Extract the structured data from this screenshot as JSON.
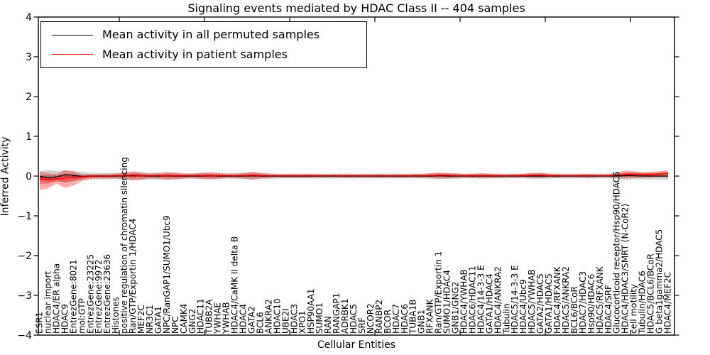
{
  "title": "Signaling events mediated by HDAC Class II -- 404 samples",
  "legend": {
    "items": [
      {
        "label": "Mean activity in all permuted samples",
        "color": "#000000"
      },
      {
        "label": "Mean activity in patient samples",
        "color": "#ff0000"
      }
    ]
  },
  "chart_data": {
    "type": "line",
    "title": "Signaling events mediated by HDAC Class II -- 404 samples",
    "xlabel": "Cellular Entities",
    "ylabel": "Inferred Activity",
    "ylim": [
      -4,
      4
    ],
    "yticks": [
      4,
      3,
      2,
      1,
      0,
      -1,
      -2,
      -3,
      -4
    ],
    "grid": false,
    "legend_position": "upper left",
    "zero_line_style": "dotted",
    "x_tick_labels_rotation": 90,
    "categories": [
      "ESR1",
      "nuclear import",
      "HDAC4/ER alpha",
      "HDAC9",
      "EntrezGene:8021",
      "mol:GTP",
      "EntrezGene:23225",
      "EntrezGene:9972",
      "EntrezGene:23636",
      "Histones",
      "positive regulation of chromatin silencing",
      "Ran/GTP/Exportin 1/HDAC4",
      "MEF2C",
      "NR3C1",
      "GATA1",
      "NPC/RanGAP1/SUMO1/Ubc9",
      "NPC",
      "CAMK4",
      "GNG2",
      "HDAC11",
      "TUBB2A",
      "YWHAE",
      "YWHAB",
      "HDAC4/CaMK II delta B",
      "HDAC4",
      "GATA2",
      "BCL6",
      "ANKRA2",
      "HDAC10",
      "UBE2I",
      "HDAC3",
      "XPO1",
      "HSP90AA1",
      "SUMO1",
      "RAN",
      "RANGAP1",
      "ADRBK1",
      "HDAC5",
      "SRF",
      "NCOR2",
      "RANBP2",
      "BCOR",
      "HDAC7",
      "HDAC6",
      "TUBA1B",
      "GNB1",
      "RFXANK",
      "Ran/GTP/Exportin 1",
      "SUMO1/HDAC4",
      "GNB1/GNG2",
      "HDAC4/YWHAB",
      "HDAC6/HDAC11",
      "HDAC4/14-3-3 E",
      "GATA1/HDAC4",
      "HDAC4/ANKRA2",
      "Tubulin",
      "HDAC5/14-3-3 E",
      "HDAC4/Ubc9",
      "HDAC5/YWHAB",
      "GATA2/HDAC5",
      "GATA1/HDAC5",
      "HDAC4/RFXANK",
      "HDAC5/ANKRA2",
      "BCL6/BCoR",
      "HDAC7/HDAC3",
      "Hsp90/HDAC6",
      "HDAC5/RFXANK",
      "HDAC4/SRF",
      "Glucocorticoid receptor/Hsp90/HDAC6",
      "HDAC4/HDAC3/SMRT (N-CoR2)",
      "cell motility",
      "Tubulin/HDAC6",
      "HDAC5/BCL6/BCoR",
      "G beta1gamma2/HDAC5",
      "HDAC4/MEF2C"
    ],
    "series": [
      {
        "name": "Mean activity in all permuted samples",
        "color": "#000000",
        "values": [
          -0.01,
          -0.05,
          -0.02,
          0.04,
          0.02,
          -0.01,
          0,
          0,
          0,
          0,
          0.01,
          0.02,
          0.01,
          0,
          0,
          0.01,
          0,
          0,
          0,
          0,
          0.01,
          0,
          0,
          0,
          0,
          0.01,
          0,
          0,
          0,
          0,
          0,
          0,
          0,
          0,
          0,
          0,
          0,
          0,
          0,
          0,
          0,
          0,
          0,
          0,
          0,
          0,
          0,
          0.01,
          0,
          0,
          0,
          0,
          0,
          0,
          0,
          0,
          0,
          0,
          0,
          0,
          0,
          0,
          0,
          0,
          0,
          0,
          0,
          0,
          0,
          0.01,
          0.01,
          0,
          0,
          0,
          0
        ]
      },
      {
        "name": "Mean activity in patient samples",
        "color": "#ff0000",
        "values": [
          -0.07,
          -0.09,
          -0.07,
          -0.05,
          -0.03,
          -0.02,
          0,
          0,
          0,
          0.01,
          0.01,
          0.01,
          0.01,
          0.01,
          0.01,
          0.01,
          0.01,
          0.01,
          0.01,
          0.01,
          0.01,
          0.01,
          0.01,
          0.01,
          0.01,
          0.02,
          0.01,
          0.01,
          0.01,
          0.01,
          0.01,
          0.01,
          0.01,
          0.01,
          0.01,
          0.01,
          0.01,
          0.01,
          0.01,
          0.01,
          0.01,
          0.01,
          0.01,
          0.01,
          0.01,
          0.01,
          0.01,
          0.02,
          0.02,
          0.01,
          0.01,
          0.01,
          0.01,
          0.01,
          0.01,
          0.01,
          0.01,
          0.01,
          0.02,
          0.02,
          0.01,
          0.01,
          0.01,
          0.01,
          0.01,
          0.01,
          0.01,
          0.01,
          0.02,
          0.04,
          0.05,
          0.04,
          0.04,
          0.05,
          0.07
        ]
      }
    ],
    "bands": [
      {
        "name": "permuted-ci",
        "color": "#808080",
        "opacity": 0.38,
        "center": 0,
        "half_width": [
          0.12,
          0.15,
          0.13,
          0.15,
          0.12,
          0.1,
          0.08,
          0.08,
          0.08,
          0.08,
          0.09,
          0.1,
          0.09,
          0.08,
          0.08,
          0.09,
          0.08,
          0.07,
          0.07,
          0.08,
          0.08,
          0.08,
          0.07,
          0.07,
          0.08,
          0.09,
          0.08,
          0.07,
          0.06,
          0.06,
          0.06,
          0.06,
          0.06,
          0.06,
          0.06,
          0.06,
          0.06,
          0.06,
          0.06,
          0.06,
          0.06,
          0.06,
          0.06,
          0.06,
          0.06,
          0.06,
          0.07,
          0.08,
          0.07,
          0.07,
          0.06,
          0.06,
          0.07,
          0.06,
          0.06,
          0.06,
          0.06,
          0.06,
          0.07,
          0.07,
          0.06,
          0.06,
          0.06,
          0.06,
          0.06,
          0.06,
          0.06,
          0.06,
          0.07,
          0.09,
          0.08,
          0.08,
          0.08,
          0.08,
          0.09
        ]
      },
      {
        "name": "patient-ci",
        "color": "#ff0000",
        "opacity": 0.33,
        "inner_band_factor": 0.45,
        "upper": [
          0.11,
          0.07,
          0.05,
          0.15,
          0.12,
          0.04,
          0.05,
          0.05,
          0.05,
          0.06,
          0.09,
          0.12,
          0.09,
          0.06,
          0.08,
          0.1,
          0.09,
          0.06,
          0.06,
          0.08,
          0.1,
          0.08,
          0.06,
          0.06,
          0.08,
          0.11,
          0.08,
          0.05,
          0.04,
          0.04,
          0.05,
          0.04,
          0.05,
          0.04,
          0.04,
          0.04,
          0.04,
          0.04,
          0.04,
          0.04,
          0.04,
          0.04,
          0.04,
          0.04,
          0.05,
          0.05,
          0.07,
          0.09,
          0.08,
          0.07,
          0.05,
          0.06,
          0.07,
          0.06,
          0.05,
          0.04,
          0.05,
          0.06,
          0.08,
          0.09,
          0.06,
          0.05,
          0.04,
          0.04,
          0.05,
          0.05,
          0.04,
          0.05,
          0.08,
          0.14,
          0.12,
          0.1,
          0.11,
          0.12,
          0.14
        ],
        "lower": [
          -0.35,
          -0.31,
          -0.19,
          -0.3,
          -0.23,
          -0.12,
          -0.07,
          -0.06,
          -0.06,
          -0.06,
          -0.08,
          -0.11,
          -0.09,
          -0.06,
          -0.07,
          -0.09,
          -0.08,
          -0.06,
          -0.05,
          -0.07,
          -0.08,
          -0.07,
          -0.05,
          -0.05,
          -0.06,
          -0.09,
          -0.06,
          -0.05,
          -0.04,
          -0.04,
          -0.04,
          -0.04,
          -0.04,
          -0.04,
          -0.04,
          -0.04,
          -0.04,
          -0.04,
          -0.04,
          -0.04,
          -0.04,
          -0.04,
          -0.04,
          -0.04,
          -0.04,
          -0.04,
          -0.05,
          -0.06,
          -0.06,
          -0.05,
          -0.04,
          -0.05,
          -0.05,
          -0.05,
          -0.04,
          -0.04,
          -0.04,
          -0.04,
          -0.05,
          -0.05,
          -0.04,
          -0.04,
          -0.03,
          -0.03,
          -0.04,
          -0.04,
          -0.03,
          -0.03,
          -0.04,
          -0.06,
          -0.05,
          -0.04,
          -0.03,
          -0.02,
          -0.02
        ]
      }
    ]
  }
}
